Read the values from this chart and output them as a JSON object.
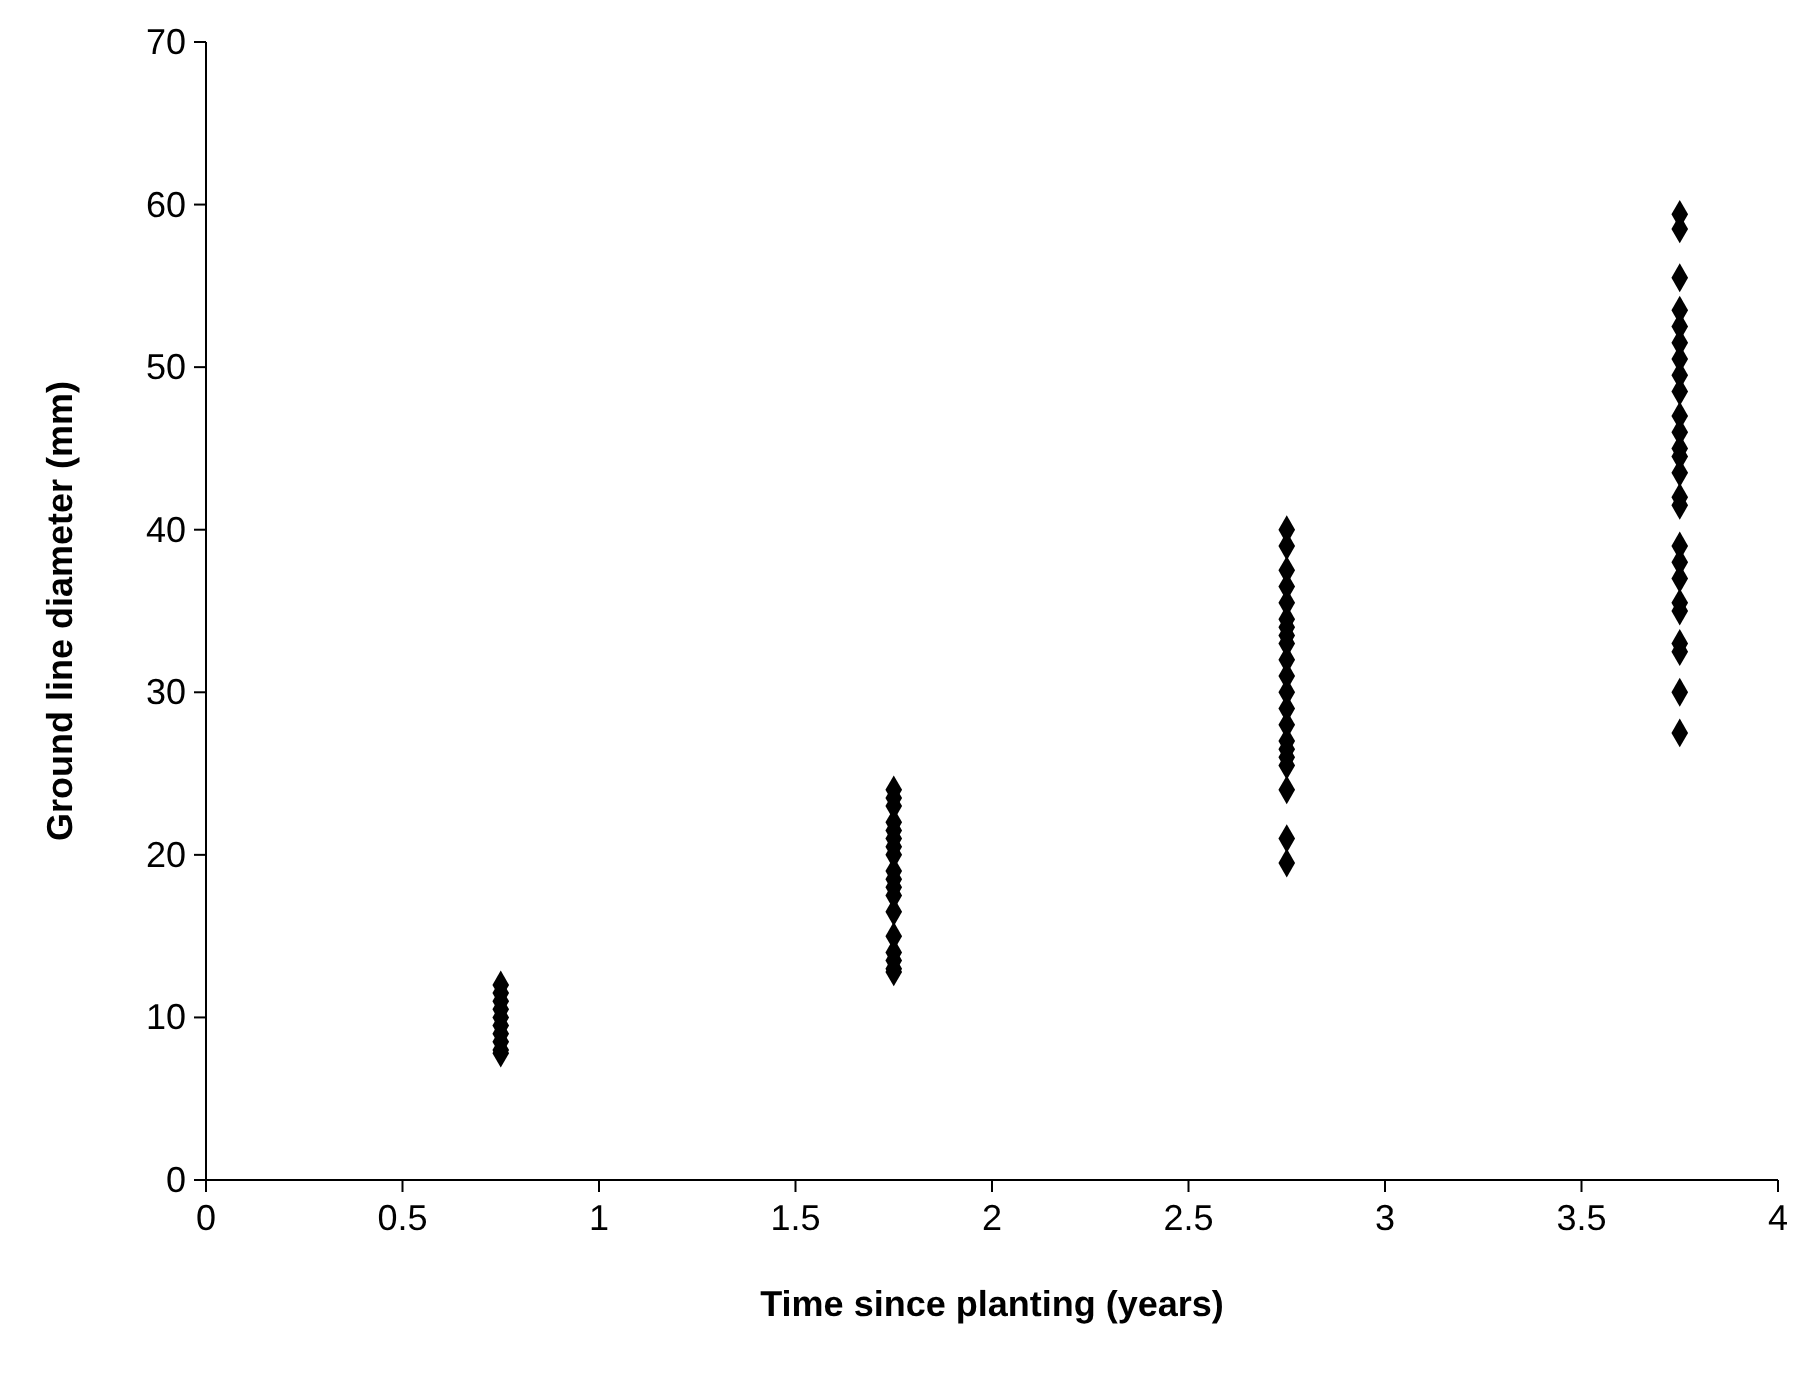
{
  "chart_data": {
    "type": "scatter",
    "xlabel": "Time since planting (years)",
    "ylabel": "Ground line diameter (mm)",
    "xlim": [
      0,
      4
    ],
    "xticks": [
      0,
      0.5,
      1,
      1.5,
      2,
      2.5,
      3,
      3.5,
      4
    ],
    "ylim": [
      0,
      70
    ],
    "yticks": [
      0,
      10,
      20,
      30,
      40,
      50,
      60,
      70
    ],
    "grid": false,
    "marker": "diamond",
    "series": [
      {
        "color": "#000000",
        "x": [
          0.75,
          0.75,
          0.75,
          0.75,
          0.75,
          0.75,
          0.75,
          0.75,
          0.75,
          0.75,
          1.75,
          1.75,
          1.75,
          1.75,
          1.75,
          1.75,
          1.75,
          1.75,
          1.75,
          1.75,
          1.75,
          1.75,
          1.75,
          1.75,
          1.75,
          1.75,
          1.75,
          1.75,
          2.75,
          2.75,
          2.75,
          2.75,
          2.75,
          2.75,
          2.75,
          2.75,
          2.75,
          2.75,
          2.75,
          2.75,
          2.75,
          2.75,
          2.75,
          2.75,
          2.75,
          2.75,
          2.75,
          2.75,
          2.75,
          3.75,
          3.75,
          3.75,
          3.75,
          3.75,
          3.75,
          3.75,
          3.75,
          3.75,
          3.75,
          3.75,
          3.75,
          3.75,
          3.75,
          3.75,
          3.75,
          3.75,
          3.75,
          3.75,
          3.75,
          3.75,
          3.75,
          3.75,
          3.75,
          3.75
        ],
        "values": [
          12,
          11.5,
          11,
          10.5,
          10,
          9.5,
          9,
          8.5,
          8,
          7.8,
          24,
          23.5,
          23,
          22,
          21.5,
          21,
          20.5,
          20,
          19,
          18.5,
          18,
          17.5,
          16.5,
          15,
          14,
          13.5,
          13,
          12.8,
          40,
          39,
          37.5,
          36.5,
          35.5,
          34.5,
          34,
          33.5,
          33,
          32,
          31,
          30,
          29,
          28,
          27,
          26.5,
          26,
          25.5,
          24,
          21,
          19.5,
          59.4,
          58.5,
          55.5,
          53.5,
          52.5,
          51.5,
          50.5,
          49.5,
          48.5,
          47,
          46,
          45,
          44.5,
          43.5,
          42,
          41.5,
          39,
          38,
          37,
          35.5,
          35,
          33,
          32.5,
          30,
          27.5
        ]
      }
    ]
  }
}
